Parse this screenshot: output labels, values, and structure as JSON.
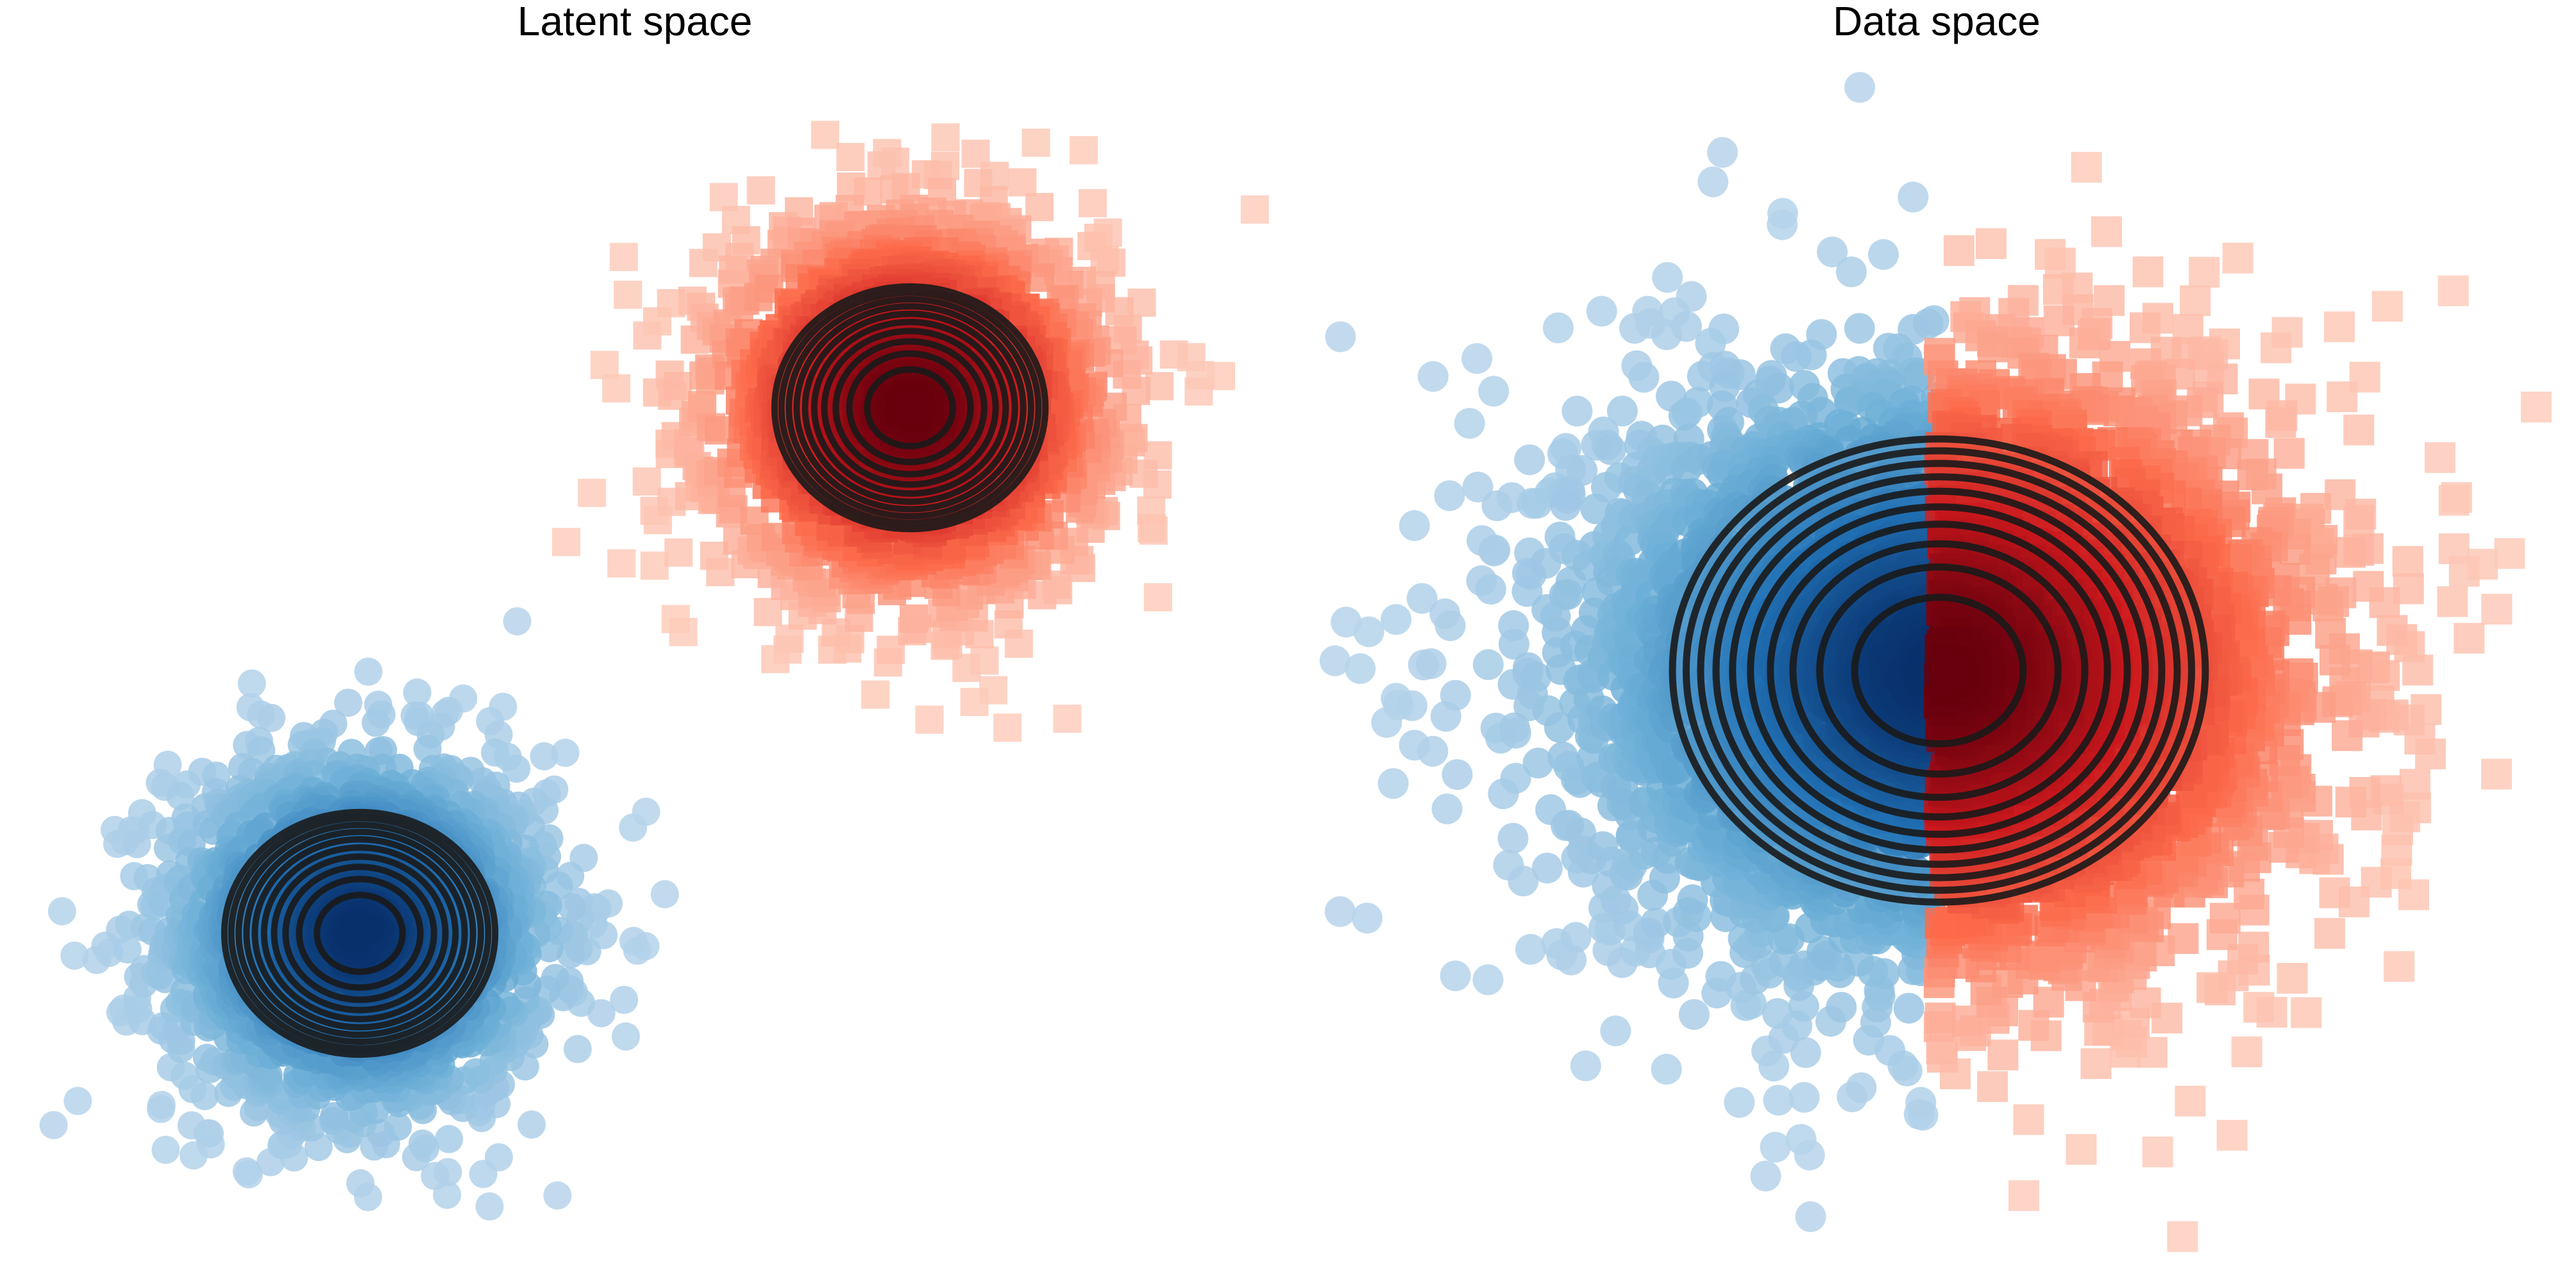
{
  "chart_data": [
    {
      "type": "scatter",
      "title": "Latent space",
      "xlabel": "",
      "ylabel": "",
      "grid": false,
      "axes_visible": false,
      "legend": "none",
      "series": [
        {
          "marker": "circle",
          "colormap": "Blues",
          "n_points": 2000,
          "center": [
            -2.6,
            -2.6
          ],
          "std": [
            0.9,
            0.9
          ]
        },
        {
          "marker": "square",
          "colormap": "Reds",
          "n_points": 2000,
          "center": [
            2.6,
            2.6
          ],
          "std": [
            0.9,
            0.9
          ]
        }
      ],
      "contours": [
        {
          "center": [
            -2.6,
            -2.6
          ],
          "levels": 10,
          "color": "#1a1a1a"
        },
        {
          "center": [
            2.6,
            2.6
          ],
          "levels": 10,
          "color": "#1a1a1a"
        }
      ],
      "xlim": [
        -6,
        6
      ],
      "ylim": [
        -6,
        6
      ]
    },
    {
      "type": "scatter",
      "title": "Data space",
      "xlabel": "",
      "ylabel": "",
      "grid": false,
      "axes_visible": false,
      "legend": "none",
      "series": [
        {
          "marker": "circle",
          "colormap": "Blues",
          "n_points": 2000,
          "center": [
            0,
            0
          ],
          "std": [
            1.6,
            1.4
          ],
          "x_max": 0
        },
        {
          "marker": "square",
          "colormap": "Reds",
          "n_points": 2000,
          "center": [
            0,
            0
          ],
          "std": [
            1.6,
            1.4
          ],
          "x_min": 0
        }
      ],
      "contours": [
        {
          "center": [
            0,
            0
          ],
          "levels": 10,
          "color": "#1a1a1a"
        }
      ],
      "xlim": [
        -5.5,
        5.5
      ],
      "ylim": [
        -5.5,
        5.5
      ]
    }
  ],
  "colors": {
    "blue_light": "#c6dbef",
    "blue_dark": "#08306b",
    "red_light": "#fee0d2",
    "red_dark": "#67000d",
    "contour": "#1a1a1a",
    "background": "#ffffff"
  }
}
